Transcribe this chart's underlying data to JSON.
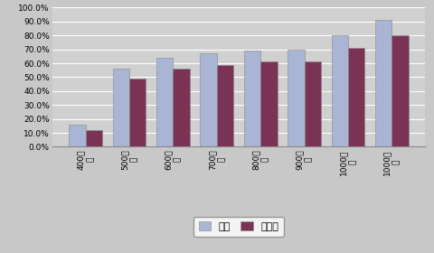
{
  "categories": [
    "400円\n台",
    "500円\n台",
    "600円\n台",
    "700円\n台",
    "800円\n台",
    "900円\n台",
    "1000円\n台",
    "1000円\n超"
  ],
  "nationwide": [
    16.0,
    56.0,
    64.0,
    67.0,
    69.0,
    69.5,
    80.0,
    91.0
  ],
  "shizuoka": [
    12.0,
    49.0,
    56.0,
    59.0,
    61.0,
    61.5,
    71.0,
    80.0
  ],
  "bar_color_nationwide": "#aab4d4",
  "bar_color_shizuoka": "#7b3355",
  "background_color": "#c8c8c8",
  "plot_bg_color": "#d0d0d0",
  "ylim": [
    0,
    100
  ],
  "yticks": [
    0,
    10,
    20,
    30,
    40,
    50,
    60,
    70,
    80,
    90,
    100
  ],
  "legend_nationwide": "全国",
  "legend_shizuoka": "静岡県",
  "grid_color": "#ffffff"
}
